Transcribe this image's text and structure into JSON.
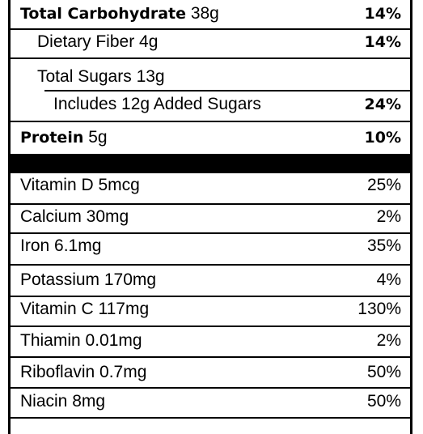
{
  "nutrients": {
    "total_carb": {
      "label": "Total Carbohydrate",
      "amount": "38g",
      "dv": "14%"
    },
    "fiber": {
      "label": "Dietary Fiber 4g",
      "dv": "14%"
    },
    "total_sugars": {
      "label": "Total Sugars 13g"
    },
    "added_sugars": {
      "label": "Includes 12g Added Sugars",
      "dv": "24%"
    },
    "protein": {
      "label": "Protein",
      "amount": "5g",
      "dv": "10%"
    }
  },
  "vitamins": [
    {
      "label": "Vitamin D 5mcg",
      "dv": "25%"
    },
    {
      "label": "Calcium 30mg",
      "dv": "2%"
    },
    {
      "label": "Iron 6.1mg",
      "dv": "35%"
    },
    {
      "label": "Potassium 170mg",
      "dv": "4%"
    },
    {
      "label": "Vitamin C 117mg",
      "dv": "130%"
    },
    {
      "label": "Thiamin 0.01mg",
      "dv": "2%"
    },
    {
      "label": "Riboflavin 0.7mg",
      "dv": "50%"
    },
    {
      "label": "Niacin 8mg",
      "dv": "50%"
    }
  ]
}
